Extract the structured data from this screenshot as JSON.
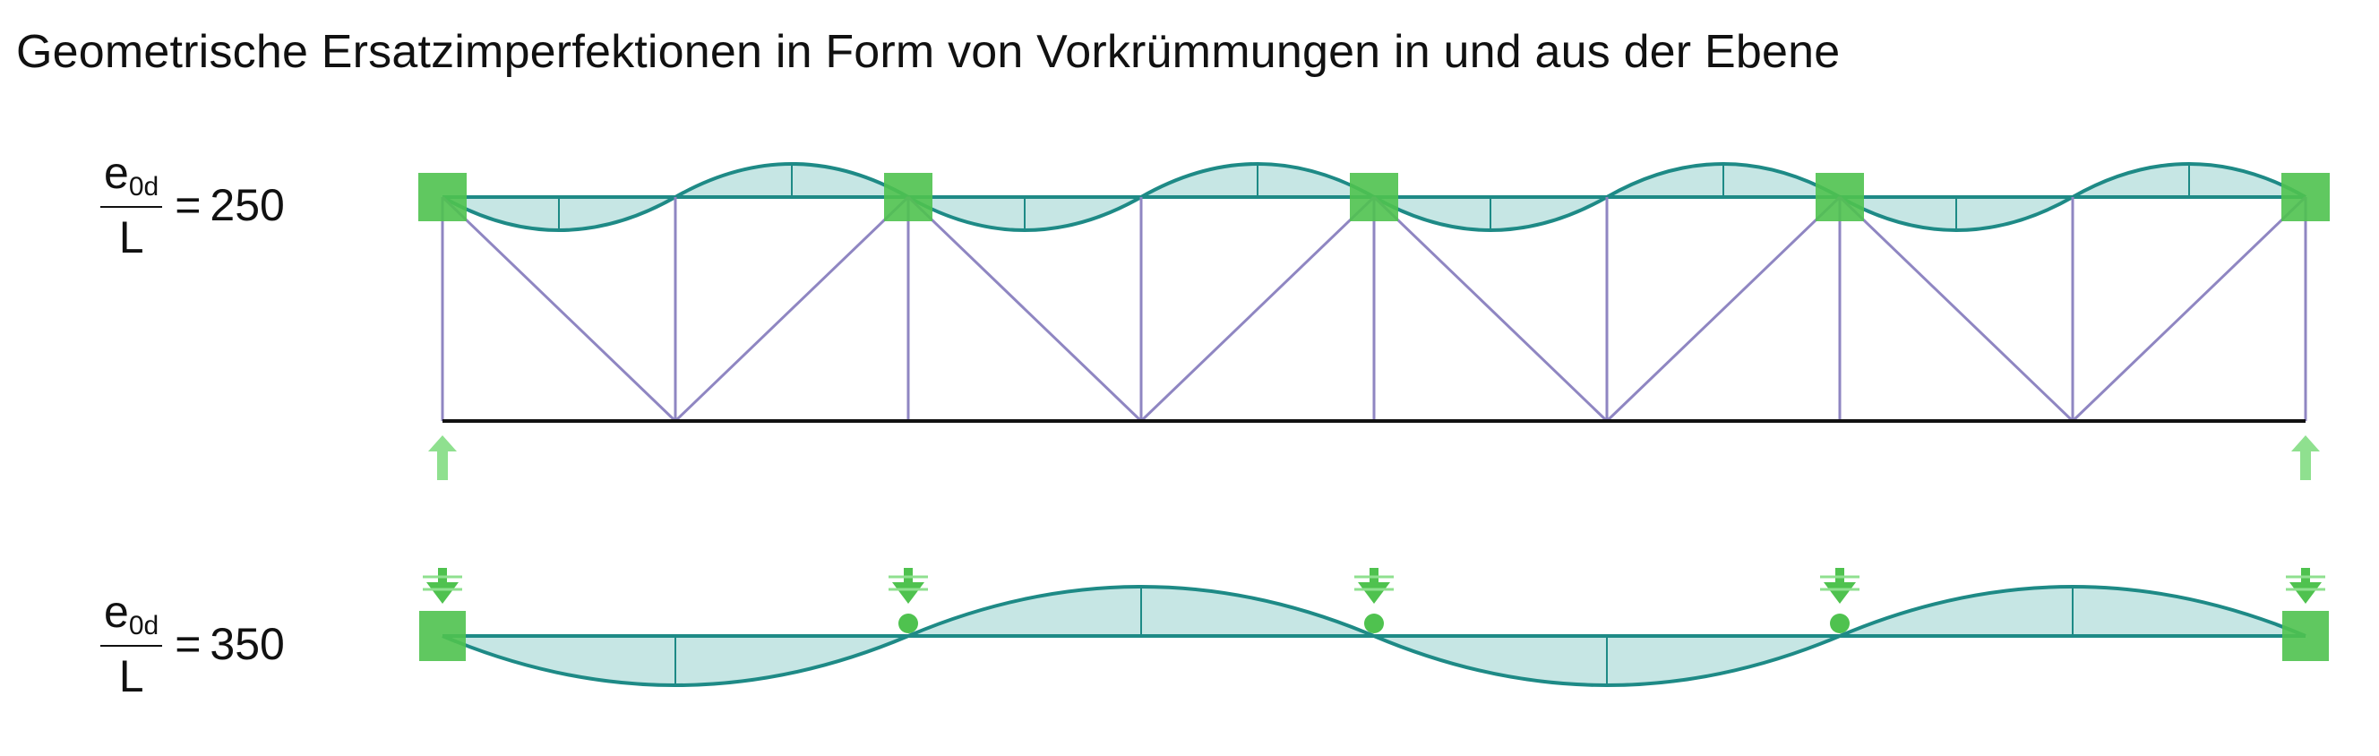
{
  "title": "Geometrische Ersatzimperfektionen in Form von Vorkrümmungen in und aus der Ebene",
  "rows": [
    {
      "numerator_base": "e",
      "numerator_sub": "0d",
      "denominator": "L",
      "equals": "=",
      "value": "250"
    },
    {
      "numerator_base": "e",
      "numerator_sub": "0d",
      "denominator": "L",
      "equals": "=",
      "value": "350"
    }
  ],
  "colors": {
    "chord": "#1e8a86",
    "fill": "#c6e6e4",
    "truss": "#8f86c2",
    "bottom_chord": "#111111",
    "support": "#4fc24f",
    "support_light": "#8fe08f"
  }
}
